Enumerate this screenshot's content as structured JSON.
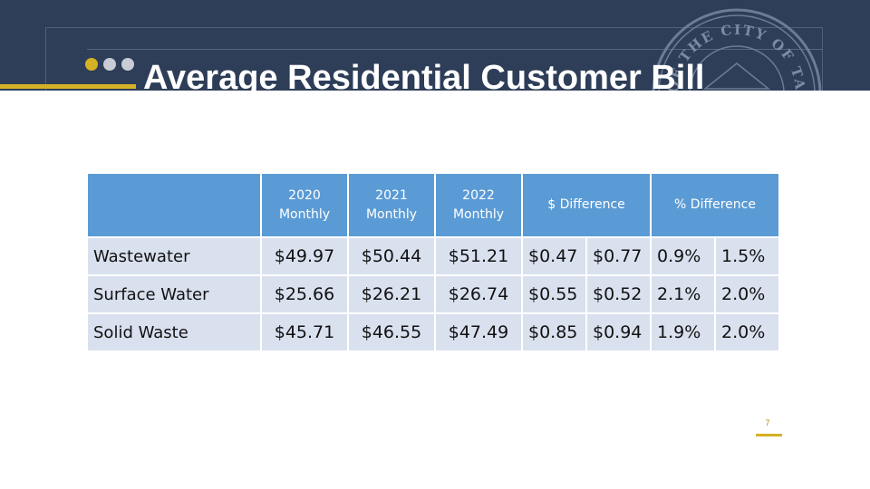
{
  "slide": {
    "title": "Average Residential Customer Bill",
    "page_number": "7",
    "seal_text": "OF THE CITY OF TACOMA"
  },
  "colors": {
    "header_bg": "#2e3e58",
    "accent_gold": "#d6b125",
    "table_header": "#5b9bd5",
    "table_row": "#d9e1ef"
  },
  "table": {
    "headers": [
      "",
      "2020 Monthly",
      "2021 Monthly",
      "2022 Monthly",
      "$ Difference",
      "% Difference"
    ],
    "rows": [
      {
        "label": "Wastewater",
        "y2020": "$49.97",
        "y2021": "$50.44",
        "y2022": "$51.21",
        "d1": "$0.47",
        "d2": "$0.77",
        "p1": "0.9%",
        "p2": "1.5%"
      },
      {
        "label": "Surface Water",
        "y2020": "$25.66",
        "y2021": "$26.21",
        "y2022": "$26.74",
        "d1": "$0.55",
        "d2": "$0.52",
        "p1": "2.1%",
        "p2": "2.0%"
      },
      {
        "label": "Solid Waste",
        "y2020": "$45.71",
        "y2021": "$46.55",
        "y2022": "$47.49",
        "d1": "$0.85",
        "d2": "$0.94",
        "p1": "1.9%",
        "p2": "2.0%"
      }
    ]
  }
}
